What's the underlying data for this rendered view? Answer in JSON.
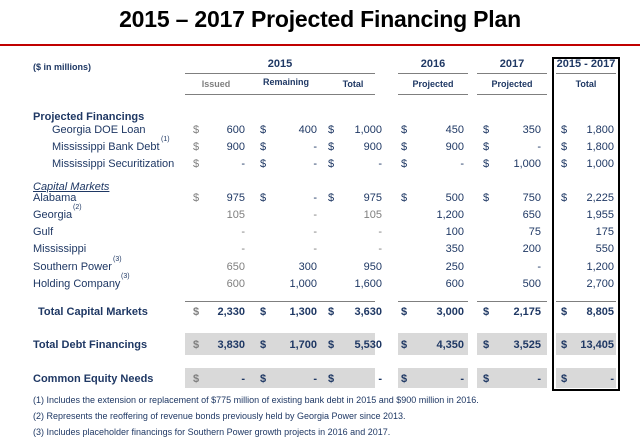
{
  "title": "2015 – 2017 Projected Financing Plan",
  "units_label": "($ in millions)",
  "columns": {
    "y2015": "2015",
    "y2016": "2016",
    "y2017": "2017",
    "total_range": "2015 - 2017",
    "issued": "Issued",
    "remaining": "Remaining",
    "total": "Total",
    "projected": "Projected",
    "total_sub": "Total"
  },
  "sections": {
    "projected_financings": "Projected Financings",
    "capital_markets": "Capital Markets"
  },
  "rows": [
    {
      "label": "Georgia DOE Loan",
      "sup": "",
      "issued": "600",
      "remaining": "400",
      "total": "1,000",
      "p2016": "450",
      "p2017": "350",
      "grand": "1,800"
    },
    {
      "label": "Mississippi Bank Debt",
      "sup": "(1)",
      "issued": "900",
      "remaining": "-",
      "total": "900",
      "p2016": "900",
      "p2017": "-",
      "grand": "1,800"
    },
    {
      "label": "Mississippi Securitization",
      "sup": "",
      "issued": "-",
      "remaining": "-",
      "total": "-",
      "p2016": "-",
      "p2017": "1,000",
      "grand": "1,000"
    },
    {
      "label": "Alabama",
      "sup": "",
      "issued": "975",
      "remaining": "-",
      "total": "975",
      "p2016": "500",
      "p2017": "750",
      "grand": "2,225"
    },
    {
      "label": "Georgia",
      "sup": "(2)",
      "issued": "105",
      "remaining": "-",
      "total": "105",
      "p2016": "1,200",
      "p2017": "650",
      "grand": "1,955"
    },
    {
      "label": "Gulf",
      "sup": "",
      "issued": "-",
      "remaining": "-",
      "total": "-",
      "p2016": "100",
      "p2017": "75",
      "grand": "175"
    },
    {
      "label": "Mississippi",
      "sup": "",
      "issued": "-",
      "remaining": "-",
      "total": "-",
      "p2016": "350",
      "p2017": "200",
      "grand": "550"
    },
    {
      "label": "Southern Power",
      "sup": "(3)",
      "issued": "650",
      "remaining": "300",
      "total": "950",
      "p2016": "250",
      "p2017": "-",
      "grand": "1,200"
    },
    {
      "label": "Holding Company",
      "sup": "(3)",
      "issued": "600",
      "remaining": "1,000",
      "total": "1,600",
      "p2016": "600",
      "p2017": "500",
      "grand": "2,700"
    }
  ],
  "total_capital_markets": {
    "label": "Total Capital Markets",
    "issued": "2,330",
    "remaining": "1,300",
    "total": "3,630",
    "p2016": "3,000",
    "p2017": "2,175",
    "grand": "8,805"
  },
  "total_debt": {
    "label": "Total Debt Financings",
    "issued": "3,830",
    "remaining": "1,700",
    "total": "5,530",
    "p2016": "4,350",
    "p2017": "3,525",
    "grand": "13,405"
  },
  "equity": {
    "label": "Common Equity Needs",
    "issued": "-",
    "remaining": "-",
    "total": "-",
    "p2016": "-",
    "p2017": "-",
    "grand": "-"
  },
  "dollar_sign": "$",
  "footnotes": [
    "(1) Includes the extension or replacement of $775 million of existing bank debt in 2015 and $900 million in 2016.",
    "(2) Represents the reoffering of revenue bonds previously held by Georgia Power since 2013.",
    "(3) Includes placeholder financings for Southern Power growth projects in 2016 and 2017."
  ],
  "colors": {
    "rule_red": "#c00000",
    "text_navy": "#1f3864",
    "muted_gray": "#7f7f7f",
    "band_gray": "#d9d9d9"
  }
}
